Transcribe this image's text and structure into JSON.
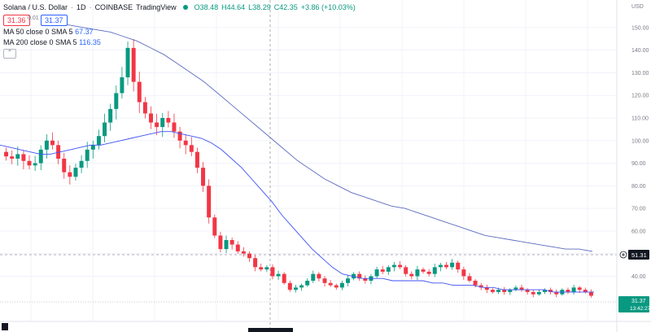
{
  "header": {
    "title": "Solana / U.S. Dollar",
    "interval": "1D",
    "exchange": "COINBASE",
    "source": "TradingView",
    "open": "O38.48",
    "high": "H44.64",
    "low": "L38.29",
    "close": "C42.35",
    "change": "+3.86 (+10.03%)",
    "sell_price": "31.36",
    "spread": "0.01",
    "buy_price": "31.37",
    "ma50_label": "MA 50 close 0 SMA 5",
    "ma50_value": "67.37",
    "ma200_label": "MA 200 close 0 SMA 5",
    "ma200_value": "116.35",
    "collapse_icon": "chevron-up"
  },
  "axis": {
    "top_label": "USD",
    "ticks": [
      "150.00",
      "140.00",
      "130.00",
      "120.00",
      "110.00",
      "100.00",
      "90.00",
      "80.00",
      "70.00",
      "60.00",
      "50.00",
      "40.00"
    ],
    "crosshair_value": "51.31",
    "last_price": "31.37",
    "countdown": "13:42:27"
  },
  "colors": {
    "up": "#089981",
    "down": "#f23645",
    "ma50": "#2962ff",
    "ma200": "#2962ff"
  },
  "chart_data": {
    "type": "candlestick",
    "y_axis_range": [
      20,
      155
    ],
    "series_close": [
      93,
      92,
      94,
      91,
      89,
      90,
      96,
      100,
      98,
      92,
      86,
      84,
      88,
      91,
      96,
      98,
      102,
      108,
      114,
      121,
      128,
      141,
      126,
      117,
      112,
      108,
      106,
      110,
      108,
      104,
      100,
      98,
      95,
      88,
      80,
      66,
      58,
      52,
      56,
      54,
      51,
      50,
      48,
      44,
      43,
      44,
      40,
      41,
      37,
      34,
      35,
      36,
      38,
      41,
      39,
      37,
      36,
      35,
      37,
      39,
      41,
      39,
      38,
      40,
      43,
      42,
      44,
      45,
      44,
      41,
      40,
      43,
      42,
      41,
      44,
      45,
      44,
      46,
      43,
      40,
      38,
      36,
      35,
      34,
      33,
      34,
      33,
      34,
      35,
      34,
      33,
      32,
      33,
      34,
      33,
      32,
      34,
      33,
      35,
      34,
      33,
      31.37
    ],
    "ma50": [
      98,
      97,
      96,
      95,
      94,
      94,
      95,
      96,
      97,
      98,
      98,
      99,
      100,
      101,
      102,
      103,
      104,
      104,
      103,
      102,
      101,
      99,
      96,
      92,
      88,
      83,
      78,
      73,
      67,
      62,
      57,
      52,
      48,
      44,
      41,
      40,
      39,
      39,
      39,
      38,
      38,
      38,
      38,
      37,
      37,
      36,
      36,
      36,
      35,
      35,
      34,
      34,
      34,
      34,
      34,
      33,
      33,
      33,
      33,
      33
    ],
    "ma200": [
      152,
      151,
      150,
      149,
      148,
      146,
      144,
      141,
      138,
      134,
      130,
      126,
      121,
      116,
      111,
      106,
      101,
      96,
      91,
      87,
      83,
      80,
      77,
      75,
      73,
      71,
      70,
      68,
      66,
      64,
      62,
      60,
      58,
      57,
      56,
      55,
      54,
      53,
      52,
      52,
      51
    ],
    "crosshair_price": 51.31,
    "last_close": 31.37
  }
}
